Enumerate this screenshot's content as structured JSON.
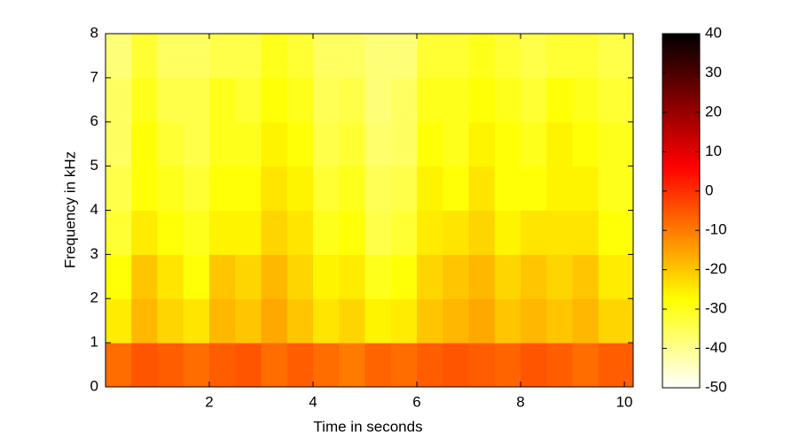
{
  "chart_data": {
    "type": "heatmap",
    "xlabel": "Time in seconds",
    "ylabel": "Frequency in kHz",
    "xbins": [
      0,
      0.5,
      1,
      1.5,
      2,
      2.5,
      3,
      3.5,
      4,
      4.5,
      5,
      5.5,
      6,
      6.5,
      7,
      7.5,
      8,
      8.5,
      9,
      9.5,
      10.17
    ],
    "ybins": [
      0,
      1,
      2,
      3,
      4,
      5,
      6,
      7,
      8
    ],
    "z": [
      [
        -8,
        -5,
        -6,
        -8,
        -6,
        -5,
        -8,
        -6,
        -8,
        -10,
        -7,
        -8,
        -6,
        -5,
        -6,
        -7,
        -5,
        -6,
        -8,
        -6
      ],
      [
        -25,
        -18,
        -22,
        -24,
        -18,
        -20,
        -16,
        -20,
        -24,
        -22,
        -26,
        -25,
        -20,
        -18,
        -16,
        -20,
        -18,
        -20,
        -18,
        -22
      ],
      [
        -28,
        -20,
        -24,
        -28,
        -20,
        -22,
        -18,
        -22,
        -26,
        -25,
        -30,
        -28,
        -22,
        -20,
        -18,
        -22,
        -20,
        -22,
        -20,
        -25
      ],
      [
        -32,
        -25,
        -28,
        -30,
        -26,
        -26,
        -22,
        -24,
        -30,
        -28,
        -34,
        -32,
        -25,
        -24,
        -22,
        -26,
        -24,
        -24,
        -24,
        -28
      ],
      [
        -34,
        -28,
        -30,
        -32,
        -28,
        -28,
        -24,
        -26,
        -32,
        -30,
        -35,
        -34,
        -26,
        -28,
        -24,
        -28,
        -28,
        -26,
        -26,
        -30
      ],
      [
        -36,
        -28,
        -32,
        -34,
        -30,
        -30,
        -26,
        -28,
        -34,
        -32,
        -37,
        -36,
        -28,
        -30,
        -26,
        -28,
        -30,
        -26,
        -28,
        -30
      ],
      [
        -36,
        -30,
        -34,
        -34,
        -30,
        -32,
        -28,
        -30,
        -35,
        -34,
        -38,
        -36,
        -30,
        -30,
        -28,
        -30,
        -32,
        -28,
        -30,
        -32
      ],
      [
        -38,
        -32,
        -36,
        -36,
        -34,
        -34,
        -30,
        -32,
        -36,
        -36,
        -38,
        -38,
        -32,
        -32,
        -30,
        -32,
        -34,
        -32,
        -32,
        -34
      ]
    ],
    "xlim": [
      0,
      10.17
    ],
    "xticks": [
      2,
      4,
      6,
      8,
      10
    ],
    "ylim": [
      0,
      8
    ],
    "yticks": [
      0,
      1,
      2,
      3,
      4,
      5,
      6,
      7,
      8
    ],
    "clim": [
      -50,
      40
    ],
    "cticks": [
      -50,
      -40,
      -30,
      -20,
      -10,
      0,
      10,
      20,
      30,
      40
    ],
    "colormap": [
      "#ffffff",
      "#ffff80",
      "#ffff00",
      "#ffaa00",
      "#ff5500",
      "#ff0000",
      "#aa0000",
      "#550000",
      "#000000"
    ]
  }
}
